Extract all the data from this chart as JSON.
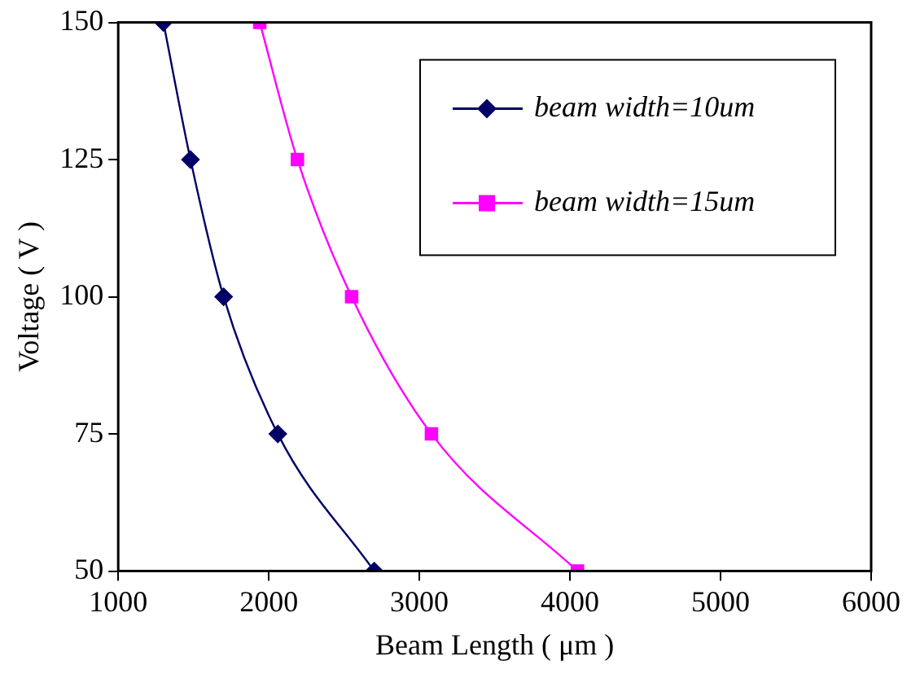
{
  "chart_data": {
    "type": "line",
    "xlabel": "Beam Length ( μm )",
    "ylabel": "Voltage ( V )",
    "xlim": [
      1000,
      6000
    ],
    "xticks": [
      1000,
      2000,
      3000,
      4000,
      5000,
      6000
    ],
    "ylim": [
      50,
      150
    ],
    "yticks": [
      50,
      75,
      100,
      125,
      150
    ],
    "grid": false,
    "legend": "top right",
    "series": [
      {
        "name": "beam width=10um",
        "color": "#000066",
        "marker": "diamond",
        "x": [
          1300,
          1480,
          1700,
          2060,
          2700
        ],
        "values": [
          150,
          125,
          100,
          75,
          50
        ]
      },
      {
        "name": "beam width=15um",
        "color": "#ff00ff",
        "marker": "square",
        "x": [
          1940,
          2190,
          2550,
          3080,
          4050
        ],
        "values": [
          150,
          125,
          100,
          75,
          50
        ]
      }
    ]
  }
}
